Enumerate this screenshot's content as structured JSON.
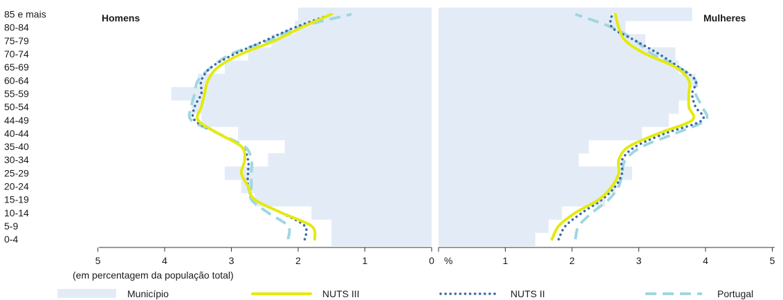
{
  "chart_data": {
    "type": "bar",
    "subtype": "population-pyramid",
    "categories": [
      "0-4",
      "5-9",
      "10-14",
      "15-19",
      "20-24",
      "25-29",
      "30-34",
      "35-40",
      "40-44",
      "44-49",
      "50-54",
      "55-59",
      "60-64",
      "65-69",
      "70-74",
      "75-79",
      "80-84",
      "85 e mais"
    ],
    "left_title": "Homens",
    "right_title": "Mulheres",
    "xlabel": "(em percentagem da população total)",
    "x_unit_label": "%",
    "xlim": [
      0,
      5
    ],
    "x_ticks_left": [
      "5",
      "4",
      "3",
      "2",
      "1",
      "0"
    ],
    "x_ticks_right": [
      "1",
      "2",
      "3",
      "4",
      "5"
    ],
    "legend": [
      "Município",
      "NUTS III",
      "NUTS II",
      "Portugal"
    ],
    "colors": {
      "Município": "#e3ecf6",
      "NUTS III": "#e4ea0f",
      "NUTS II": "#3c6aa6",
      "Portugal": "#9fd6e2"
    },
    "series": [
      {
        "name": "Município",
        "render": "bars",
        "men": [
          1.5,
          1.5,
          1.8,
          2.65,
          2.85,
          3.1,
          2.45,
          2.2,
          2.9,
          3.45,
          3.6,
          3.9,
          3.5,
          3.1,
          2.75,
          2.4,
          2.05,
          2.0
        ],
        "women": [
          1.45,
          1.65,
          1.85,
          2.5,
          2.65,
          2.9,
          2.1,
          2.25,
          3.05,
          3.45,
          3.6,
          3.75,
          3.85,
          3.6,
          3.55,
          3.1,
          2.8,
          3.8
        ]
      },
      {
        "name": "NUTS III",
        "render": "solid",
        "men": [
          1.75,
          1.8,
          2.25,
          2.65,
          2.75,
          2.85,
          2.8,
          2.85,
          3.2,
          3.5,
          3.45,
          3.4,
          3.35,
          3.2,
          2.85,
          2.35,
          1.95,
          1.5
        ],
        "women": [
          1.7,
          1.8,
          2.05,
          2.4,
          2.6,
          2.7,
          2.7,
          2.85,
          3.3,
          3.8,
          3.75,
          3.75,
          3.75,
          3.55,
          3.1,
          2.8,
          2.7,
          2.65
        ]
      },
      {
        "name": "NUTS II",
        "render": "dotted",
        "men": [
          1.9,
          1.9,
          2.25,
          2.65,
          2.75,
          2.75,
          2.75,
          2.85,
          3.2,
          3.55,
          3.55,
          3.45,
          3.45,
          3.3,
          2.95,
          2.5,
          2.05,
          1.5
        ],
        "women": [
          1.8,
          1.9,
          2.15,
          2.45,
          2.65,
          2.75,
          2.75,
          2.95,
          3.4,
          3.95,
          3.85,
          3.8,
          3.85,
          3.6,
          3.3,
          2.95,
          2.6,
          2.6
        ]
      },
      {
        "name": "Portugal",
        "render": "dashed",
        "men": [
          2.15,
          2.15,
          2.45,
          2.7,
          2.7,
          2.7,
          2.7,
          2.8,
          3.2,
          3.6,
          3.6,
          3.55,
          3.5,
          3.3,
          3.0,
          2.45,
          2.0,
          1.2
        ],
        "women": [
          2.05,
          2.1,
          2.3,
          2.55,
          2.7,
          2.75,
          2.8,
          3.05,
          3.55,
          4.0,
          3.95,
          3.85,
          3.85,
          3.6,
          3.2,
          2.95,
          2.6,
          2.05
        ]
      }
    ]
  }
}
